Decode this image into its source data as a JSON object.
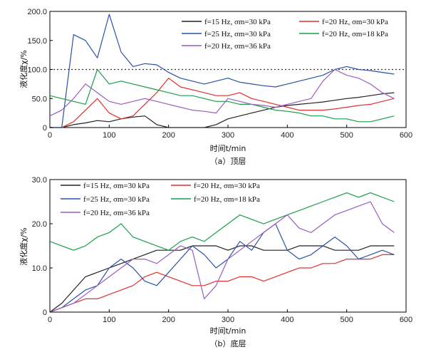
{
  "chart_data": [
    {
      "type": "line",
      "caption": "（a）顶层",
      "xlabel": "时间t/min",
      "ylabel": "液化度χ/%",
      "xlim": [
        0,
        600
      ],
      "ylim": [
        0,
        200
      ],
      "xticks": [
        "0",
        "100",
        "200",
        "300",
        "400",
        "500",
        "600"
      ],
      "yticks": [
        "0",
        "50.0",
        "100.0",
        "150.0",
        "200.0"
      ],
      "reference_line": {
        "y": 100,
        "style": "dotted"
      },
      "legend": [
        "f=15 Hz, σm=30 kPa",
        "f=20 Hz, σm=30 kPa",
        "f=25 Hz, σm=30 kPa",
        "f=20 Hz, σm=18 kPa",
        "f=20 Hz, σm=36 kPa"
      ],
      "series": [
        {
          "name": "f=15 Hz, σm=30 kPa",
          "color": "#222222",
          "x": [
            0,
            20,
            40,
            60,
            80,
            100,
            120,
            140,
            160,
            180,
            200,
            220,
            240,
            260,
            280,
            300,
            320,
            340,
            360,
            380,
            400,
            420,
            440,
            460,
            480,
            500,
            520,
            540,
            560,
            580
          ],
          "y": [
            0,
            0,
            5,
            8,
            12,
            10,
            15,
            18,
            20,
            5,
            0,
            0,
            0,
            0,
            5,
            15,
            20,
            25,
            30,
            35,
            38,
            40,
            42,
            44,
            47,
            50,
            52,
            55,
            58,
            60
          ]
        },
        {
          "name": "f=20 Hz, σm=30 kPa",
          "color": "#e03030",
          "x": [
            0,
            20,
            40,
            60,
            80,
            100,
            120,
            140,
            160,
            180,
            200,
            220,
            240,
            260,
            280,
            300,
            320,
            340,
            360,
            380,
            400,
            420,
            440,
            460,
            480,
            500,
            520,
            540,
            560,
            580
          ],
          "y": [
            0,
            0,
            10,
            30,
            50,
            25,
            15,
            20,
            40,
            60,
            85,
            70,
            65,
            60,
            55,
            55,
            60,
            50,
            45,
            40,
            35,
            30,
            30,
            30,
            32,
            35,
            38,
            40,
            45,
            50
          ]
        },
        {
          "name": "f=25 Hz, σm=30 kPa",
          "color": "#2a52a8",
          "x": [
            0,
            20,
            40,
            60,
            80,
            100,
            120,
            140,
            160,
            180,
            200,
            220,
            240,
            260,
            280,
            300,
            320,
            340,
            360,
            380,
            400,
            420,
            440,
            460,
            480,
            500,
            520,
            540,
            560,
            580
          ],
          "y": [
            0,
            0,
            160,
            150,
            120,
            195,
            130,
            105,
            110,
            108,
            95,
            85,
            80,
            75,
            80,
            85,
            78,
            75,
            72,
            70,
            75,
            80,
            85,
            90,
            100,
            105,
            100,
            98,
            95,
            92
          ]
        },
        {
          "name": "f=20 Hz, σm=18 kPa",
          "color": "#18a048",
          "x": [
            0,
            20,
            40,
            60,
            80,
            100,
            120,
            140,
            160,
            180,
            200,
            220,
            240,
            260,
            280,
            300,
            320,
            340,
            360,
            380,
            400,
            420,
            440,
            460,
            480,
            500,
            520,
            540,
            560,
            580
          ],
          "y": [
            55,
            50,
            45,
            40,
            100,
            75,
            80,
            75,
            70,
            65,
            60,
            55,
            55,
            50,
            45,
            45,
            40,
            40,
            35,
            30,
            28,
            25,
            20,
            20,
            15,
            15,
            10,
            10,
            15,
            20
          ]
        },
        {
          "name": "f=20 Hz, σm=36 kPa",
          "color": "#9a5cc0",
          "x": [
            0,
            20,
            40,
            60,
            80,
            100,
            120,
            140,
            160,
            180,
            200,
            220,
            240,
            260,
            280,
            300,
            320,
            340,
            360,
            380,
            400,
            420,
            440,
            460,
            480,
            500,
            520,
            540,
            560,
            580
          ],
          "y": [
            20,
            30,
            50,
            75,
            60,
            45,
            40,
            45,
            50,
            45,
            40,
            35,
            30,
            28,
            25,
            50,
            45,
            40,
            38,
            35,
            40,
            45,
            50,
            80,
            100,
            90,
            85,
            75,
            60,
            50
          ]
        }
      ]
    },
    {
      "type": "line",
      "caption": "（b）底层",
      "xlabel": "时间t/min",
      "ylabel": "液化度χ/%",
      "xlim": [
        0,
        600
      ],
      "ylim": [
        0,
        30
      ],
      "xticks": [
        "0",
        "100",
        "200",
        "300",
        "400",
        "500",
        "600"
      ],
      "yticks": [
        "0",
        "10.0",
        "20.0",
        "30.0"
      ],
      "legend": [
        "f=15 Hz, σm=30 kPa",
        "f=20 Hz, σm=30 kPa",
        "f=25 Hz, σm=30 kPa",
        "f=20 Hz, σm=18 kPa",
        "f=20 Hz, σm=36 kPa"
      ],
      "series": [
        {
          "name": "f=15 Hz, σm=30 kPa",
          "color": "#222222",
          "x": [
            0,
            20,
            40,
            60,
            80,
            100,
            120,
            140,
            160,
            180,
            200,
            220,
            240,
            260,
            280,
            300,
            320,
            340,
            360,
            380,
            400,
            420,
            440,
            460,
            480,
            500,
            520,
            540,
            560,
            580
          ],
          "y": [
            0,
            2,
            5,
            8,
            9,
            10,
            11,
            12,
            13,
            14,
            14,
            14,
            15,
            15,
            15,
            14,
            15,
            15,
            14,
            14,
            14,
            15,
            15,
            15,
            14,
            14,
            14,
            15,
            15,
            15
          ]
        },
        {
          "name": "f=20 Hz, σm=30 kPa",
          "color": "#e03030",
          "x": [
            0,
            20,
            40,
            60,
            80,
            100,
            120,
            140,
            160,
            180,
            200,
            220,
            240,
            260,
            280,
            300,
            320,
            340,
            360,
            380,
            400,
            420,
            440,
            460,
            480,
            500,
            520,
            540,
            560,
            580
          ],
          "y": [
            0,
            1,
            2,
            3,
            3,
            4,
            5,
            6,
            8,
            9,
            8,
            7,
            6,
            6,
            7,
            7,
            8,
            8,
            7,
            8,
            9,
            10,
            10,
            11,
            11,
            12,
            12,
            12,
            13,
            13
          ]
        },
        {
          "name": "f=25 Hz, σm=30 kPa",
          "color": "#2a52a8",
          "x": [
            0,
            20,
            40,
            60,
            80,
            100,
            120,
            140,
            160,
            180,
            200,
            220,
            240,
            260,
            280,
            300,
            320,
            340,
            360,
            380,
            400,
            420,
            440,
            460,
            480,
            500,
            520,
            540,
            560,
            580
          ],
          "y": [
            0,
            1,
            3,
            5,
            6,
            10,
            12,
            10,
            7,
            6,
            9,
            12,
            15,
            13,
            10,
            12,
            16,
            14,
            18,
            20,
            14,
            12,
            13,
            15,
            17,
            15,
            12,
            13,
            14,
            13
          ]
        },
        {
          "name": "f=20 Hz, σm=18 kPa",
          "color": "#18a048",
          "x": [
            0,
            20,
            40,
            60,
            80,
            100,
            120,
            140,
            160,
            180,
            200,
            220,
            240,
            260,
            280,
            300,
            320,
            340,
            360,
            380,
            400,
            420,
            440,
            460,
            480,
            500,
            520,
            540,
            560,
            580
          ],
          "y": [
            16,
            15,
            14,
            15,
            17,
            18,
            20,
            17,
            16,
            15,
            14,
            16,
            17,
            16,
            18,
            20,
            22,
            21,
            20,
            21,
            22,
            23,
            24,
            25,
            26,
            27,
            26,
            27,
            26,
            25
          ]
        },
        {
          "name": "f=20 Hz, σm=36 kPa",
          "color": "#9a5cc0",
          "x": [
            0,
            20,
            40,
            60,
            80,
            100,
            120,
            140,
            160,
            180,
            200,
            220,
            240,
            260,
            280,
            300,
            320,
            340,
            360,
            380,
            400,
            420,
            440,
            460,
            480,
            500,
            520,
            540,
            560,
            580
          ],
          "y": [
            0,
            1,
            2,
            4,
            6,
            8,
            10,
            12,
            12,
            11,
            13,
            15,
            14,
            3,
            6,
            12,
            14,
            16,
            18,
            20,
            22,
            19,
            18,
            20,
            22,
            23,
            24,
            25,
            20,
            18
          ]
        }
      ]
    }
  ]
}
